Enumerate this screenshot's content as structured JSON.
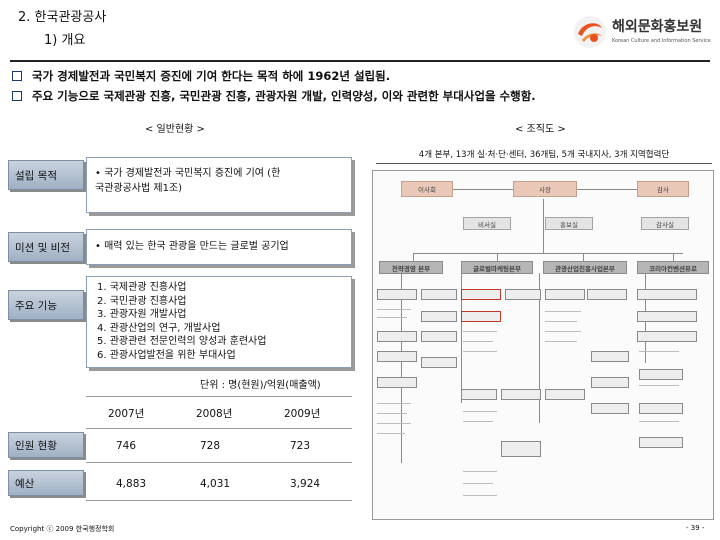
{
  "header": {
    "title": "2. 한국관광공사",
    "subtitle": "1) 개요",
    "logo_text": "해외문화홍보원",
    "logo_sub": "Korean Culture and Information Service"
  },
  "bullets": [
    "국가 경제발전과 국민복지 증진에 기여 한다는 목적 하에 1962년 설립됨.",
    "주요 기능으로 국제관광 진흥, 국민관광 진흥, 관광자원 개발, 인력양성, 이와 관련한 부대사업을 수행함."
  ],
  "general": {
    "label": "< 일반현황 >",
    "rows": [
      {
        "label": "설립 목적",
        "text": "• 국가 경제발전과 국민복지 증진에 기여 (한\n  국관광공사법 제1조)"
      },
      {
        "label": "미션 및 비전",
        "text": "• 매력 있는 한국 관광을 만드는 글로벌 공기업"
      },
      {
        "label": "주요 기능",
        "items": [
          "1. 국제관광 진흥사업",
          "2. 국민관광 진흥사업",
          "3. 관광자원 개발사업",
          "4. 관광산업의 연구, 개발사업",
          "5. 관광관련 전문인력의 양성과 훈련사업",
          "6. 관광사업발전을 위한 부대사업"
        ]
      }
    ]
  },
  "table": {
    "unit": "단위 : 명(현원)/억원(매출액)",
    "columns": [
      "2007년",
      "2008년",
      "2009년"
    ],
    "rows": [
      {
        "label": "인원 현황",
        "values": [
          "746",
          "728",
          "723"
        ]
      },
      {
        "label": "예산",
        "values": [
          "4,883",
          "4,031",
          "3,924"
        ]
      }
    ]
  },
  "org": {
    "label": "< 조직도 >",
    "caption": "4개 본부, 13개 실·처·단·센터, 36개팀, 5개 국내지사, 3개 지역협력단",
    "top": [
      "이사회",
      "사장",
      "감사"
    ],
    "staff": [
      "비서실",
      "홍보실",
      "감사실"
    ],
    "divisions": [
      "전략경영 본부",
      "글로벌마케팅본부",
      "관광산업진흥사업본부",
      "코리아컨벤션뷰로"
    ]
  },
  "footer": {
    "copyright": "Copyright ⓒ 2009 한국행정학회",
    "page": "- 39 -"
  },
  "colors": {
    "rule": "#222222",
    "tab": "#9fb0c4",
    "logo_accent": "#e8541e"
  }
}
